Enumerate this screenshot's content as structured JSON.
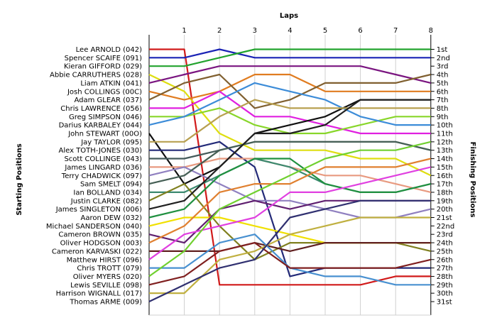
{
  "chart_data": {
    "type": "line",
    "title": "Laps",
    "ylabel_left": "Starting Positions",
    "ylabel_right": "Finishing Positions",
    "x": [
      0,
      1,
      2,
      3,
      4,
      5,
      6,
      7,
      8
    ],
    "x_tick_labels": [
      "1",
      "2",
      "3",
      "4",
      "5",
      "6",
      "7",
      "8"
    ],
    "y_axis": "position, 1 at top, reversed",
    "ylim": [
      1,
      31
    ],
    "grid": "vertical lines at each lap",
    "finish_labels": [
      "1st",
      "2nd",
      "3rd",
      "4th",
      "5th",
      "6th",
      "7th",
      "8th",
      "9th",
      "10th",
      "11th",
      "12th",
      "13th",
      "14th",
      "15th",
      "16th",
      "17th",
      "18th",
      "19th",
      "20th",
      "21st",
      "22nd",
      "23rd",
      "24th",
      "25th",
      "26th",
      "27th",
      "28th",
      "29th",
      "30th",
      "31st"
    ],
    "series": [
      {
        "name": "Lee ARNOLD (042)",
        "color": "#d11a1a",
        "values": [
          1,
          1,
          29,
          29,
          29,
          29,
          29,
          28,
          28
        ]
      },
      {
        "name": "Spencer SCAIFE (091)",
        "color": "#1a23b5",
        "values": [
          2,
          2,
          1,
          2,
          2,
          2,
          2,
          2,
          2
        ]
      },
      {
        "name": "Kieran GIFFORD (029)",
        "color": "#22a32e",
        "values": [
          3,
          3,
          2,
          1,
          1,
          1,
          1,
          1,
          1
        ]
      },
      {
        "name": "Abbie CARRUTHERS (028)",
        "color": "#dede10",
        "values": [
          4,
          6,
          11,
          13,
          13,
          13,
          14,
          14,
          16
        ]
      },
      {
        "name": "Liam ATKIN (041)",
        "color": "#7a1580",
        "values": [
          5,
          4,
          3,
          3,
          3,
          3,
          3,
          4,
          5
        ]
      },
      {
        "name": "Josh COLLINGS (00C)",
        "color": "#e07c20",
        "values": [
          6,
          7,
          6,
          4,
          4,
          6,
          6,
          6,
          6
        ]
      },
      {
        "name": "Adam GLEAR (037)",
        "color": "#806030",
        "values": [
          7,
          5,
          4,
          8,
          7,
          5,
          5,
          5,
          4
        ]
      },
      {
        "name": "Chris LAWRENCE (056)",
        "color": "#e020e0",
        "values": [
          8,
          8,
          6,
          9,
          9,
          10,
          11,
          11,
          11
        ]
      },
      {
        "name": "Greg SIMPSON (046)",
        "color": "#88d62a",
        "values": [
          9,
          9,
          8,
          10,
          11,
          11,
          10,
          9,
          9
        ]
      },
      {
        "name": "Darius KARBALEY (044)",
        "color": "#3c8cd8",
        "values": [
          10,
          9,
          7,
          5,
          6,
          7,
          9,
          10,
          10
        ]
      },
      {
        "name": "John STEWART (00O)",
        "color": "#101010",
        "values": [
          11,
          17,
          15,
          11,
          10,
          9,
          7,
          7,
          7
        ]
      },
      {
        "name": "Jay TAYLOR (095)",
        "color": "#b8a050",
        "values": [
          12,
          12,
          9,
          7,
          8,
          8,
          8,
          8,
          8
        ]
      },
      {
        "name": "Alex TOTH-JONES (030)",
        "color": "#232a78",
        "values": [
          13,
          13,
          12,
          15,
          28,
          27,
          27,
          27,
          27
        ]
      },
      {
        "name": "Scott COLLINGE (043)",
        "color": "#445a5a",
        "values": [
          14,
          14,
          13,
          12,
          12,
          12,
          12,
          12,
          13
        ]
      },
      {
        "name": "James LINGARD (036)",
        "color": "#e89a80",
        "values": [
          15,
          15,
          14,
          14,
          15,
          16,
          16,
          17,
          18
        ]
      },
      {
        "name": "Terry CHADWICK (097)",
        "color": "#9080c0",
        "values": [
          16,
          15,
          17,
          19,
          19,
          20,
          21,
          21,
          20
        ]
      },
      {
        "name": "Sam SMELT (094)",
        "color": "#455f55",
        "values": [
          17,
          16,
          13,
          12,
          12,
          12,
          12,
          12,
          13
        ]
      },
      {
        "name": "Ian BOLLAND (034)",
        "color": "#3c8a70",
        "values": [
          18,
          18,
          16,
          14,
          15,
          17,
          18,
          18,
          17
        ]
      },
      {
        "name": "Justin CLARKE (082)",
        "color": "#808020",
        "values": [
          19,
          17,
          22,
          26,
          24,
          24,
          24,
          24,
          25
        ]
      },
      {
        "name": "James SINGLETON (006)",
        "color": "#202020",
        "values": [
          20,
          19,
          15,
          11,
          11,
          10,
          7,
          7,
          7
        ]
      },
      {
        "name": "Aaron DEW (032)",
        "color": "#209040",
        "values": [
          21,
          20,
          16,
          14,
          14,
          17,
          18,
          18,
          17
        ]
      },
      {
        "name": "Michael SANDERSON (040)",
        "color": "#f0e000",
        "values": [
          22,
          21,
          21,
          22,
          23,
          24,
          24,
          24,
          24
        ]
      },
      {
        "name": "Cameron BROWN (035)",
        "color": "#602070",
        "values": [
          23,
          24,
          20,
          19,
          20,
          19,
          19,
          19,
          19
        ]
      },
      {
        "name": "Oliver HODGSON (003)",
        "color": "#e08030",
        "values": [
          24,
          22,
          18,
          17,
          17,
          15,
          15,
          15,
          14
        ]
      },
      {
        "name": "Cameron KARVASKI (022)",
        "color": "#602020",
        "values": [
          25,
          25,
          25,
          24,
          25,
          24,
          24,
          24,
          24
        ]
      },
      {
        "name": "Matthew HIRST (096)",
        "color": "#e040e0",
        "values": [
          26,
          23,
          22,
          21,
          18,
          18,
          17,
          16,
          15
        ]
      },
      {
        "name": "Chris TROTT (079)",
        "color": "#4890d0",
        "values": [
          27,
          27,
          24,
          23,
          27,
          28,
          28,
          29,
          29
        ]
      },
      {
        "name": "Oliver MYERS (020)",
        "color": "#70d030",
        "values": [
          28,
          25,
          20,
          18,
          16,
          14,
          13,
          13,
          12
        ]
      },
      {
        "name": "Lewis SEVILLE (098)",
        "color": "#802020",
        "values": [
          29,
          28,
          25,
          24,
          27,
          27,
          27,
          27,
          26
        ]
      },
      {
        "name": "Harrison WIGNALL (017)",
        "color": "#c0b040",
        "values": [
          30,
          30,
          26,
          25,
          23,
          22,
          21,
          21,
          21
        ]
      },
      {
        "name": "Thomas ARME (009)",
        "color": "#303070",
        "values": [
          31,
          29,
          27,
          26,
          21,
          20,
          19,
          19,
          19
        ]
      }
    ]
  }
}
